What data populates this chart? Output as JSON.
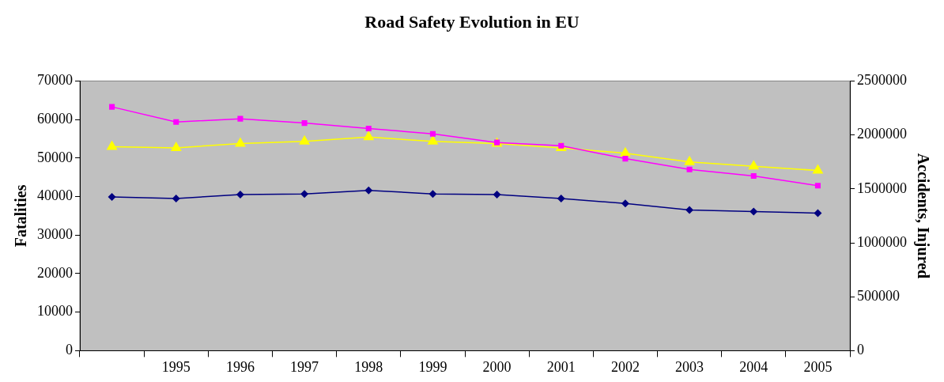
{
  "chart_data": {
    "type": "line",
    "title": "Road Safety Evolution in EU",
    "ylabel": "Fatalities",
    "y2label": "Accidents, Injured",
    "categories": [
      null,
      "1995",
      "1996",
      "1997",
      "1998",
      "1999",
      "2000",
      "2001",
      "2002",
      "2003",
      "2004",
      "2005"
    ],
    "series": [
      {
        "color": "#000080",
        "marker": "diamond",
        "values": [
          39900,
          39500,
          40500,
          40700,
          41600,
          40700,
          40500,
          39500,
          38200,
          36500,
          36100,
          35700
        ]
      },
      {
        "color": "#ff00ff",
        "marker": "square",
        "axis": "y2",
        "values": [
          2260000,
          2120000,
          2150000,
          2110000,
          2060000,
          2010000,
          1930000,
          1900000,
          1780000,
          1680000,
          1620000,
          1530000
        ]
      },
      {
        "color": "#ffff00",
        "marker": "triangle",
        "axis": "y2",
        "values": [
          1890000,
          1880000,
          1920000,
          1940000,
          1980000,
          1940000,
          1920000,
          1880000,
          1830000,
          1750000,
          1710000,
          1670000
        ]
      }
    ],
    "ylim": [
      0,
      70000
    ],
    "yticks": [
      0,
      10000,
      20000,
      30000,
      40000,
      50000,
      60000,
      70000
    ],
    "y2lim": [
      0,
      2500000
    ],
    "y2ticks": [
      0,
      500000,
      1000000,
      1500000,
      2000000,
      2500000
    ],
    "grid": false,
    "legend": false,
    "line_style": "solid"
  }
}
